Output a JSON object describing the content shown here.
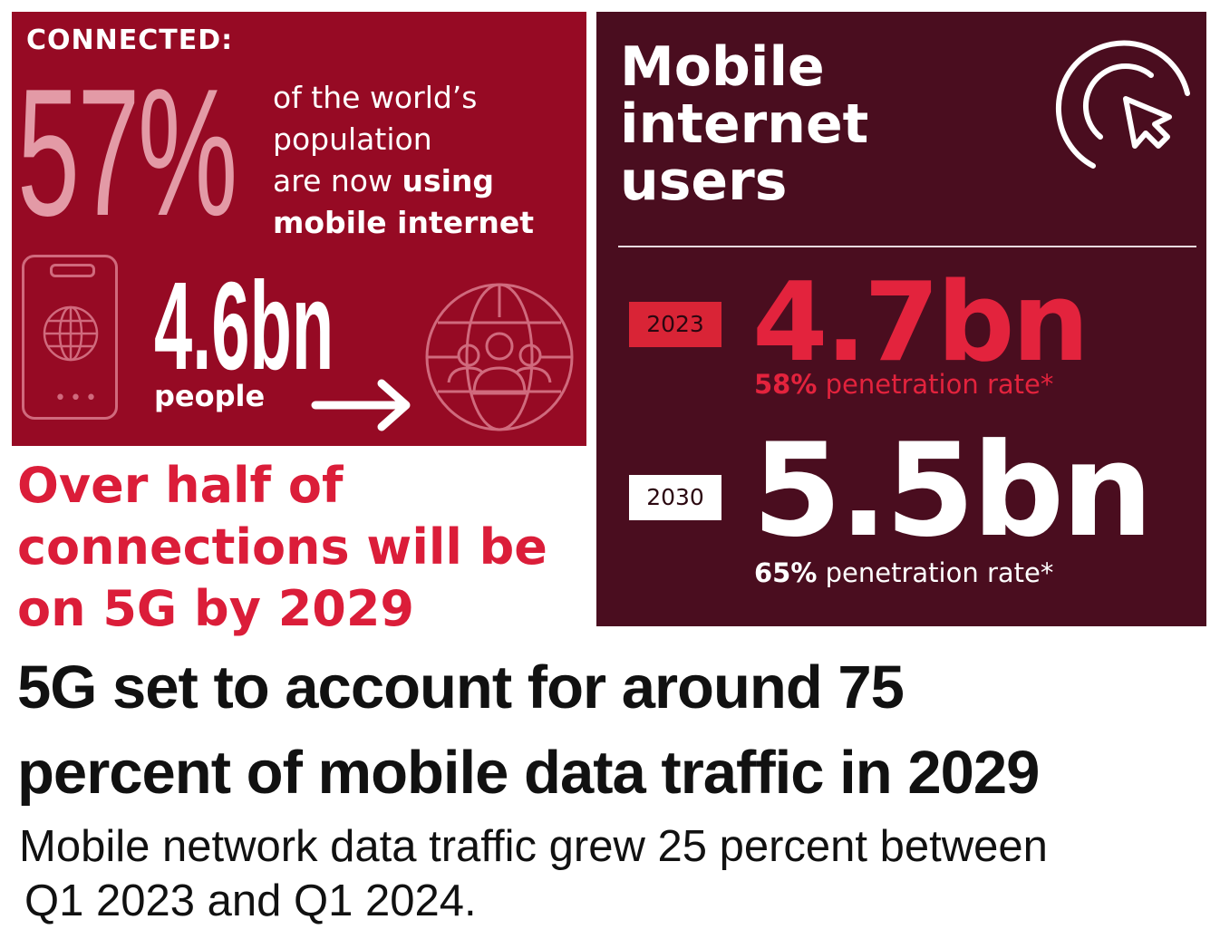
{
  "left_panel": {
    "connected_label": "CONNECTED:",
    "percentage": "57%",
    "description": {
      "line1": "of the world’s",
      "line2": "population",
      "line3_prefix": "are now ",
      "line3_bold": "using",
      "line4_bold": "mobile internet"
    },
    "people_count": "4.6bn",
    "people_label": "people",
    "phone_dots": "•••",
    "icons": [
      "phone-icon",
      "globe-icon",
      "arrow-right-icon",
      "globe-people-icon"
    ]
  },
  "right_panel": {
    "title_line1": "Mobile",
    "title_line2": "internet",
    "title_line3": "users",
    "entries": [
      {
        "year": "2023",
        "value": "4.7bn",
        "rate_bold": "58%",
        "rate_text": " penetration rate*"
      },
      {
        "year": "2030",
        "value": "5.5bn",
        "rate_bold": "65%",
        "rate_text": " penetration rate*"
      }
    ],
    "icons": [
      "cursor-click-icon"
    ]
  },
  "headline_red": {
    "line1": "Over half of",
    "line2": "connections will be",
    "line3": "on 5G by 2029"
  },
  "headline_black": {
    "line1": "5G set to account for around 75",
    "line2": "percent of mobile data traffic in 2029"
  },
  "subtext": {
    "line1": "Mobile network data traffic grew 25 percent between",
    "line2": "Q1 2023 and Q1 2024."
  },
  "colors": {
    "left_panel_bg": "#960a24",
    "right_panel_bg": "#4a0d1f",
    "accent_red": "#e3233d",
    "pink": "#e39aa6",
    "text_dark": "#111111"
  }
}
